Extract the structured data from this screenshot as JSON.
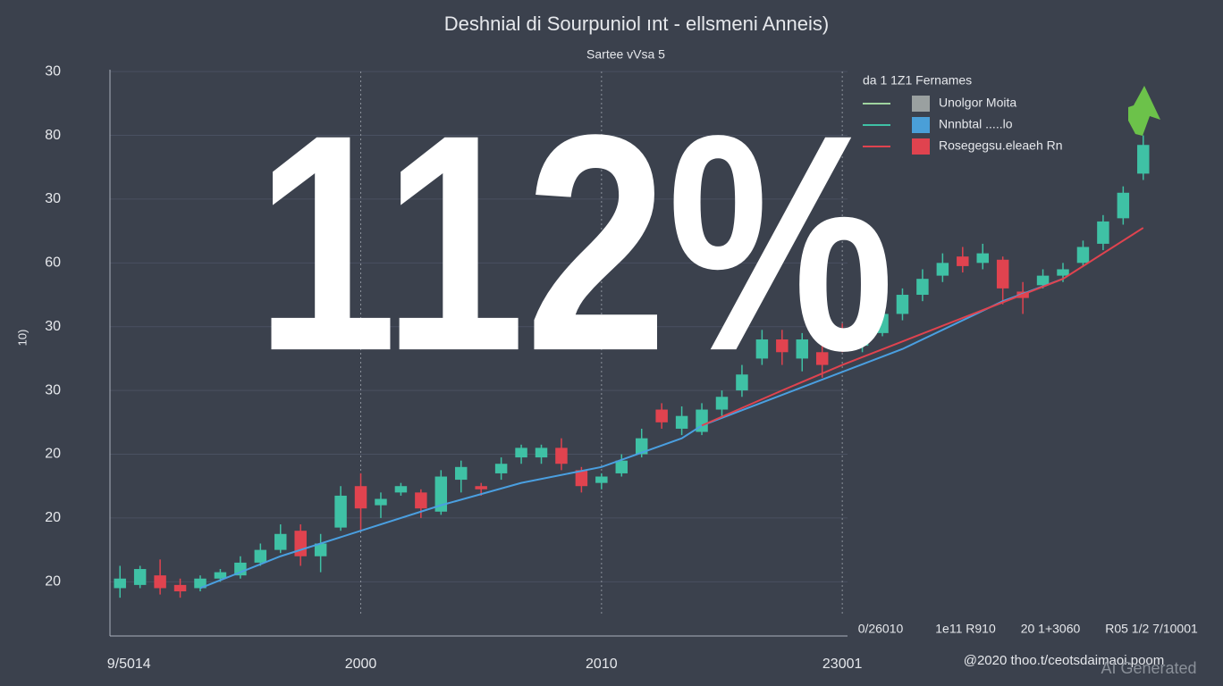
{
  "chart_data": {
    "type": "candlestick",
    "title": "Deshnial di Sourpuniol ınt  - ellsmeni Anneis)",
    "subtitle": "Sartee vVsa  5",
    "ylabel": "10)",
    "annotation": "112%",
    "categories": [
      "9/5014",
      null,
      null,
      null,
      null,
      null,
      null,
      null,
      null,
      null,
      null,
      null,
      "2000",
      null,
      null,
      null,
      null,
      null,
      null,
      null,
      null,
      null,
      null,
      null,
      "2010",
      null,
      null,
      null,
      null,
      null,
      null,
      null,
      null,
      null,
      null,
      null,
      "23001",
      null,
      null,
      null,
      null,
      null,
      null,
      null,
      null,
      null,
      null,
      null,
      null,
      null,
      null,
      null
    ],
    "extra_x_labels": [
      "0/26010",
      "1e11 R910",
      "20 1+3060",
      "R05 1/2 7/10001"
    ],
    "footer": "@2020 thoo.t/ceotsdaimaoi.poom",
    "watermark": "AI Generated",
    "ylim": [
      -0.85,
      8.1
    ],
    "yticks": [
      {
        "value": 8,
        "label": "30"
      },
      {
        "value": 7,
        "label": "80"
      },
      {
        "value": 6,
        "label": "30"
      },
      {
        "value": 5,
        "label": "60"
      },
      {
        "value": 4,
        "label": "30"
      },
      {
        "value": 3,
        "label": "30"
      },
      {
        "value": 2,
        "label": "20"
      },
      {
        "value": 1,
        "label": "20"
      },
      {
        "value": 0,
        "label": "20"
      }
    ],
    "grid": true,
    "candles": {
      "up_color": "#3fc1a5",
      "down_color": "#e0434f",
      "open": [
        -0.1,
        -0.05,
        0.1,
        -0.05,
        -0.1,
        0.05,
        0.1,
        0.3,
        0.5,
        0.8,
        0.4,
        0.85,
        1.5,
        1.2,
        1.4,
        1.4,
        1.1,
        1.6,
        1.5,
        1.7,
        1.95,
        1.95,
        2.1,
        1.75,
        1.55,
        1.7,
        2.0,
        2.7,
        2.4,
        2.35,
        2.7,
        3.0,
        3.5,
        3.8,
        3.5,
        3.6,
        3.95,
        3.7,
        3.9,
        4.2,
        4.5,
        4.8,
        5.1,
        5.0,
        5.05,
        4.55,
        4.65,
        4.8,
        5.0,
        5.3,
        5.7,
        6.4
      ],
      "close": [
        0.05,
        0.2,
        -0.1,
        -0.15,
        0.05,
        0.15,
        0.3,
        0.5,
        0.75,
        0.4,
        0.6,
        1.35,
        1.15,
        1.3,
        1.5,
        1.15,
        1.65,
        1.8,
        1.45,
        1.85,
        2.1,
        2.1,
        1.85,
        1.5,
        1.65,
        1.9,
        2.25,
        2.5,
        2.6,
        2.7,
        2.9,
        3.25,
        3.8,
        3.6,
        3.8,
        3.4,
        3.65,
        3.9,
        4.2,
        4.5,
        4.75,
        5.0,
        4.95,
        5.15,
        4.6,
        4.45,
        4.8,
        4.9,
        5.25,
        5.65,
        6.1,
        6.85
      ],
      "high": [
        0.25,
        0.25,
        0.35,
        0.05,
        0.1,
        0.2,
        0.4,
        0.6,
        0.9,
        0.9,
        0.75,
        1.5,
        1.7,
        1.4,
        1.55,
        1.45,
        1.75,
        1.9,
        1.55,
        1.95,
        2.15,
        2.15,
        2.25,
        1.8,
        1.7,
        2.0,
        2.4,
        2.8,
        2.75,
        2.8,
        3.0,
        3.4,
        3.95,
        3.95,
        3.9,
        3.7,
        4.05,
        4.0,
        4.4,
        4.6,
        4.9,
        5.15,
        5.25,
        5.3,
        5.1,
        4.7,
        4.9,
        5.0,
        5.35,
        5.75,
        6.2,
        7.0
      ],
      "low": [
        -0.25,
        -0.1,
        -0.2,
        -0.25,
        -0.15,
        0.0,
        0.05,
        0.25,
        0.45,
        0.25,
        0.15,
        0.8,
        0.8,
        1.0,
        1.35,
        1.0,
        1.05,
        1.4,
        1.35,
        1.6,
        1.85,
        1.85,
        1.75,
        1.4,
        1.45,
        1.65,
        1.95,
        2.4,
        2.3,
        2.3,
        2.6,
        2.9,
        3.4,
        3.4,
        3.3,
        3.2,
        3.6,
        3.6,
        3.85,
        4.1,
        4.4,
        4.7,
        4.85,
        4.9,
        4.35,
        4.2,
        4.6,
        4.7,
        4.95,
        5.2,
        5.6,
        6.3
      ]
    },
    "lines": [
      {
        "color": "#4a9fe0",
        "values": [
          null,
          null,
          null,
          null,
          -0.1,
          null,
          null,
          null,
          0.4,
          null,
          null,
          null,
          0.8,
          null,
          null,
          null,
          1.2,
          null,
          null,
          null,
          1.55,
          null,
          null,
          null,
          1.8,
          null,
          null,
          null,
          2.25,
          2.45,
          null,
          null,
          null,
          null,
          null,
          null,
          null,
          null,
          null,
          3.65,
          null,
          null,
          null,
          null,
          4.4,
          null,
          null,
          4.75,
          null,
          null,
          null,
          null
        ]
      },
      {
        "color": "#e0434f",
        "values": [
          null,
          null,
          null,
          null,
          null,
          null,
          null,
          null,
          null,
          null,
          null,
          null,
          null,
          null,
          null,
          null,
          null,
          null,
          null,
          null,
          null,
          null,
          null,
          null,
          null,
          null,
          null,
          null,
          null,
          2.45,
          null,
          null,
          null,
          3.0,
          null,
          null,
          3.4,
          null,
          null,
          null,
          null,
          null,
          null,
          null,
          null,
          null,
          null,
          4.75,
          null,
          null,
          null,
          5.55
        ]
      }
    ],
    "legend": {
      "title": "da 1 1Z1  Fernames",
      "entries": [
        {
          "label": "Unolgor Moita",
          "color": "#9aa0a0",
          "line_color": "#9fd39f"
        },
        {
          "label": "Nnnbtal  .....lo",
          "color": "#4a9fd8",
          "line_color": "#3fc1a5"
        },
        {
          "label": "Rosegegsu.eleaeh Rn",
          "color": "#e0434f",
          "line_color": "#e0434f"
        }
      ]
    }
  }
}
